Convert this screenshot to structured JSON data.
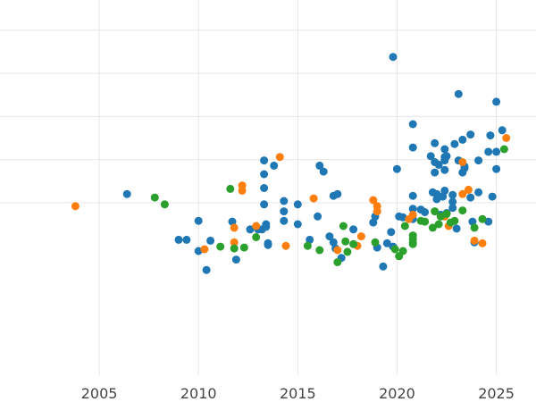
{
  "chart_data": {
    "type": "scatter",
    "title": "",
    "xlabel": "",
    "ylabel": "",
    "xlim": [
      2000,
      2027
    ],
    "ylim": [
      -2.0,
      2.35
    ],
    "grid": true,
    "x_ticks": [
      2005,
      2010,
      2015,
      2020,
      2025
    ],
    "x_tick_labels": [
      "2005",
      "2010",
      "2015",
      "2020",
      "2025"
    ],
    "y_ticks": [
      0.0,
      0.5,
      1.0,
      1.5,
      2.0
    ],
    "y_tick_labels": [
      "",
      "",
      "",
      "",
      ""
    ],
    "series": [
      {
        "name": "blue",
        "color": "#1f77b4",
        "points": [
          [
            2006.4,
            0.1
          ],
          [
            2009.0,
            -0.43
          ],
          [
            2009.4,
            -0.43
          ],
          [
            2010.0,
            -0.21
          ],
          [
            2010.0,
            -0.56
          ],
          [
            2010.4,
            -0.78
          ],
          [
            2010.6,
            -0.44
          ],
          [
            2011.7,
            -0.22
          ],
          [
            2011.9,
            -0.66
          ],
          [
            2012.6,
            -0.31
          ],
          [
            2013.0,
            -0.31
          ],
          [
            2013.2,
            -0.31
          ],
          [
            2013.3,
            -0.02
          ],
          [
            2013.3,
            0.17
          ],
          [
            2013.3,
            0.33
          ],
          [
            2013.3,
            0.49
          ],
          [
            2013.4,
            -0.28
          ],
          [
            2013.4,
            -0.25
          ],
          [
            2013.5,
            -0.47
          ],
          [
            2013.5,
            -0.49
          ],
          [
            2013.8,
            0.43
          ],
          [
            2014.3,
            -0.21
          ],
          [
            2014.3,
            -0.1
          ],
          [
            2014.3,
            0.02
          ],
          [
            2015.0,
            -0.25
          ],
          [
            2015.0,
            -0.02
          ],
          [
            2015.6,
            -0.43
          ],
          [
            2016.0,
            -0.16
          ],
          [
            2016.1,
            0.43
          ],
          [
            2016.3,
            0.36
          ],
          [
            2016.6,
            -0.39
          ],
          [
            2016.8,
            -0.46
          ],
          [
            2016.8,
            0.08
          ],
          [
            2016.9,
            -0.53
          ],
          [
            2017.0,
            0.1
          ],
          [
            2017.2,
            -0.64
          ],
          [
            2017.8,
            -0.31
          ],
          [
            2018.8,
            -0.23
          ],
          [
            2018.9,
            -0.16
          ],
          [
            2019.0,
            -0.52
          ],
          [
            2019.3,
            -0.74
          ],
          [
            2019.5,
            -0.47
          ],
          [
            2019.7,
            -0.34
          ],
          [
            2019.8,
            -0.51
          ],
          [
            2019.8,
            1.69
          ],
          [
            2020.0,
            0.39
          ],
          [
            2020.1,
            -0.16
          ],
          [
            2020.3,
            -0.17
          ],
          [
            2020.8,
            -0.19
          ],
          [
            2020.8,
            -0.07
          ],
          [
            2020.8,
            0.08
          ],
          [
            2020.8,
            0.64
          ],
          [
            2020.8,
            0.91
          ],
          [
            2021.2,
            -0.08
          ],
          [
            2021.4,
            -0.11
          ],
          [
            2021.7,
            0.54
          ],
          [
            2021.8,
            0.12
          ],
          [
            2021.9,
            0.35
          ],
          [
            2021.9,
            0.47
          ],
          [
            2021.9,
            0.69
          ],
          [
            2022.0,
            0.1
          ],
          [
            2022.0,
            0.04
          ],
          [
            2022.1,
            0.44
          ],
          [
            2022.2,
            -0.14
          ],
          [
            2022.3,
            0.07
          ],
          [
            2022.4,
            0.38
          ],
          [
            2022.4,
            0.49
          ],
          [
            2022.4,
            0.53
          ],
          [
            2022.4,
            0.62
          ],
          [
            2022.4,
            0.14
          ],
          [
            2022.5,
            0.54
          ],
          [
            2022.5,
            -0.12
          ],
          [
            2022.8,
            0.01
          ],
          [
            2022.8,
            -0.06
          ],
          [
            2022.8,
            0.09
          ],
          [
            2022.9,
            0.68
          ],
          [
            2023.0,
            -0.3
          ],
          [
            2023.1,
            0.49
          ],
          [
            2023.1,
            1.26
          ],
          [
            2023.3,
            0.73
          ],
          [
            2023.3,
            0.35
          ],
          [
            2023.4,
            0.4
          ],
          [
            2023.4,
            0.42
          ],
          [
            2023.7,
            0.79
          ],
          [
            2023.7,
            0.06
          ],
          [
            2023.8,
            -0.22
          ],
          [
            2023.9,
            -0.46
          ],
          [
            2024.1,
            0.49
          ],
          [
            2024.1,
            0.12
          ],
          [
            2024.6,
            -0.22
          ],
          [
            2024.6,
            0.59
          ],
          [
            2024.7,
            0.78
          ],
          [
            2024.8,
            0.07
          ],
          [
            2025.0,
            0.39
          ],
          [
            2025.0,
            0.59
          ],
          [
            2025.0,
            1.17
          ],
          [
            2025.3,
            0.84
          ]
        ]
      },
      {
        "name": "orange",
        "color": "#ff7f0e",
        "points": [
          [
            2003.8,
            -0.04
          ],
          [
            2010.3,
            -0.54
          ],
          [
            2011.8,
            -0.29
          ],
          [
            2011.8,
            -0.46
          ],
          [
            2012.2,
            0.2
          ],
          [
            2012.2,
            0.14
          ],
          [
            2012.9,
            -0.27
          ],
          [
            2014.1,
            0.53
          ],
          [
            2014.4,
            -0.5
          ],
          [
            2015.8,
            0.05
          ],
          [
            2017.0,
            -0.55
          ],
          [
            2018.0,
            -0.5
          ],
          [
            2018.2,
            -0.39
          ],
          [
            2018.8,
            0.03
          ],
          [
            2019.0,
            -0.04
          ],
          [
            2019.0,
            -0.1
          ],
          [
            2020.6,
            -0.19
          ],
          [
            2020.8,
            -0.14
          ],
          [
            2022.4,
            -0.16
          ],
          [
            2022.6,
            -0.27
          ],
          [
            2023.3,
            0.1
          ],
          [
            2023.3,
            0.47
          ],
          [
            2023.6,
            0.15
          ],
          [
            2023.9,
            -0.44
          ],
          [
            2024.3,
            -0.47
          ],
          [
            2025.5,
            0.75
          ]
        ]
      },
      {
        "name": "green",
        "color": "#2ca02c",
        "points": [
          [
            2007.8,
            0.06
          ],
          [
            2008.3,
            -0.02
          ],
          [
            2011.1,
            -0.51
          ],
          [
            2011.6,
            0.16
          ],
          [
            2011.8,
            -0.53
          ],
          [
            2012.3,
            -0.52
          ],
          [
            2012.9,
            -0.4
          ],
          [
            2015.5,
            -0.5
          ],
          [
            2016.1,
            -0.55
          ],
          [
            2017.0,
            -0.69
          ],
          [
            2017.3,
            -0.27
          ],
          [
            2017.4,
            -0.45
          ],
          [
            2017.5,
            -0.57
          ],
          [
            2017.8,
            -0.48
          ],
          [
            2018.9,
            -0.46
          ],
          [
            2019.9,
            -0.54
          ],
          [
            2020.1,
            -0.62
          ],
          [
            2020.3,
            -0.56
          ],
          [
            2020.4,
            -0.27
          ],
          [
            2020.8,
            -0.38
          ],
          [
            2020.8,
            -0.42
          ],
          [
            2020.8,
            -0.46
          ],
          [
            2020.8,
            -0.48
          ],
          [
            2021.2,
            -0.21
          ],
          [
            2021.4,
            -0.22
          ],
          [
            2021.8,
            -0.29
          ],
          [
            2021.9,
            -0.1
          ],
          [
            2022.1,
            -0.25
          ],
          [
            2022.2,
            -0.16
          ],
          [
            2022.5,
            -0.13
          ],
          [
            2022.7,
            -0.23
          ],
          [
            2022.9,
            -0.21
          ],
          [
            2023.3,
            -0.09
          ],
          [
            2023.9,
            -0.29
          ],
          [
            2024.3,
            -0.19
          ],
          [
            2025.4,
            0.62
          ]
        ]
      }
    ]
  }
}
